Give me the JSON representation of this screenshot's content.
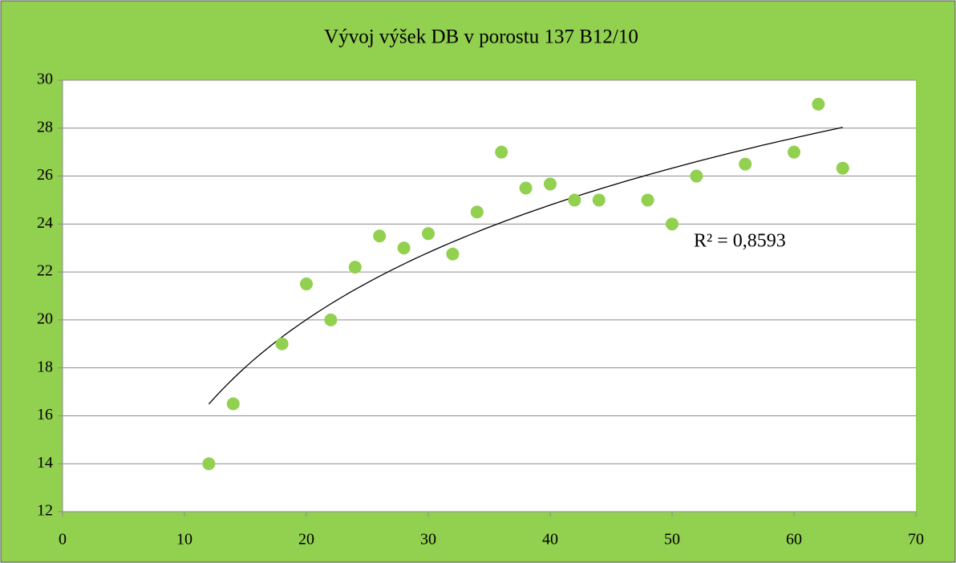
{
  "chart_data": {
    "type": "scatter",
    "title": "Vývoj výšek DB v porostu 137 B12/10",
    "annotation": "R² = 0,8593",
    "trendline": "logarithmic",
    "series": [
      {
        "color": "#92d050",
        "x": [
          12,
          14,
          18,
          20,
          22,
          24,
          26,
          28,
          30,
          32,
          34,
          36,
          38,
          40,
          42,
          44,
          48,
          50,
          52,
          56,
          60,
          62,
          64
        ],
        "values": [
          14,
          16.5,
          19,
          21.5,
          20,
          22.2,
          23.5,
          23,
          23.6,
          22.75,
          24.5,
          27,
          25.5,
          25.67,
          25,
          25,
          25,
          24,
          26,
          26.5,
          27,
          29,
          26.33
        ]
      }
    ],
    "xlim": [
      0,
      70
    ],
    "xticks": [
      0,
      10,
      20,
      30,
      40,
      50,
      60,
      70
    ],
    "ylim": [
      12,
      30
    ],
    "yticks": [
      12,
      14,
      16,
      18,
      20,
      22,
      24,
      26,
      28,
      30
    ],
    "grid": true
  }
}
